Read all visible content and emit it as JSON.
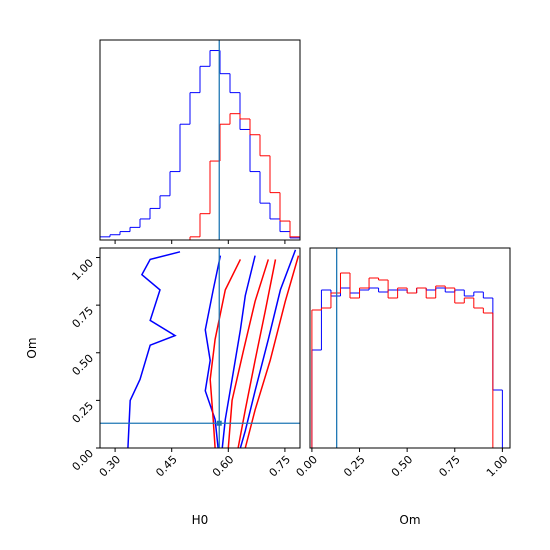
{
  "chart_data": [
    {
      "type": "histogram",
      "truth_color": "#1f77b4",
      "truth": 0.576,
      "xticklabels": false,
      "xlim": [
        0.26,
        0.79
      ],
      "ylim": [
        0,
        190
      ],
      "xticks": [
        0.3,
        0.45,
        0.6,
        0.75
      ],
      "bins": [
        0.26,
        0.2865,
        0.313,
        0.3395,
        0.366,
        0.3925,
        0.419,
        0.4455,
        0.472,
        0.4985,
        0.525,
        0.5515,
        0.578,
        0.6045,
        0.631,
        0.6575,
        0.684,
        0.7105,
        0.737,
        0.7635,
        0.79
      ],
      "series": [
        {
          "color": "blue",
          "values": [
            3,
            5,
            8,
            12,
            20,
            30,
            42,
            65,
            110,
            140,
            165,
            180,
            158,
            140,
            105,
            65,
            35,
            20,
            8,
            2
          ]
        },
        {
          "color": "red",
          "values": [
            0,
            0,
            0,
            0,
            0,
            0,
            0,
            0,
            0,
            3,
            25,
            75,
            110,
            120,
            115,
            100,
            80,
            45,
            18,
            3
          ]
        }
      ]
    },
    {
      "type": "contour",
      "xlabel": "H0",
      "ylabel": "Om",
      "truth_color": "#1f77b4",
      "truth": {
        "x": 0.576,
        "y": 0.13
      },
      "xlim": [
        0.26,
        0.79
      ],
      "ylim": [
        0,
        1.05
      ],
      "xticks": [
        {
          "value": 0.3,
          "label": "0.30"
        },
        {
          "value": 0.45,
          "label": "0.45"
        },
        {
          "value": 0.6,
          "label": "0.60"
        },
        {
          "value": 0.75,
          "label": "0.75"
        }
      ],
      "yticks": [
        {
          "value": 0,
          "label": "0.00"
        },
        {
          "value": 0.25,
          "label": "0.25"
        },
        {
          "value": 0.5,
          "label": "0.50"
        },
        {
          "value": 0.75,
          "label": "0.75"
        },
        {
          "value": 1,
          "label": "1.00"
        }
      ],
      "contours": [
        {
          "color": "blue",
          "x": [
            0.472,
            0.393,
            0.371,
            0.419,
            0.393,
            0.459,
            0.393,
            0.366,
            0.34,
            0.334
          ],
          "y": [
            1.03,
            0.99,
            0.91,
            0.83,
            0.67,
            0.59,
            0.54,
            0.36,
            0.25,
            0
          ]
        },
        {
          "color": "blue",
          "x": [
            0.579,
            0.56,
            0.539,
            0.552,
            0.539,
            0.565,
            0.573
          ],
          "y": [
            1.01,
            0.83,
            0.62,
            0.46,
            0.3,
            0.15,
            0
          ]
        },
        {
          "color": "blue",
          "x": [
            0.671,
            0.645,
            0.632,
            0.61,
            0.592,
            0.584
          ],
          "y": [
            1.01,
            0.8,
            0.62,
            0.36,
            0.15,
            0
          ]
        },
        {
          "color": "blue",
          "x": [
            0.778,
            0.738,
            0.706,
            0.671,
            0.645,
            0.632
          ],
          "y": [
            1.04,
            0.83,
            0.57,
            0.3,
            0.09,
            0
          ]
        },
        {
          "color": "red",
          "x": [
            0.632,
            0.592,
            0.565,
            0.552,
            0.56,
            0.565
          ],
          "y": [
            0.99,
            0.83,
            0.57,
            0.36,
            0.15,
            0
          ]
        },
        {
          "color": "red",
          "x": [
            0.706,
            0.671,
            0.64,
            0.61,
            0.6
          ],
          "y": [
            0.99,
            0.77,
            0.51,
            0.25,
            0
          ]
        },
        {
          "color": "red",
          "x": [
            0.725,
            0.698,
            0.671,
            0.645,
            0.626
          ],
          "y": [
            0.99,
            0.72,
            0.46,
            0.2,
            0
          ]
        },
        {
          "color": "red",
          "x": [
            0.786,
            0.751,
            0.711,
            0.671,
            0.645
          ],
          "y": [
            1.01,
            0.77,
            0.46,
            0.2,
            0
          ]
        }
      ]
    },
    {
      "type": "histogram",
      "xlabel": "Om",
      "truth_color": "#1f77b4",
      "truth": 0.13,
      "xlim": [
        -0.01,
        1.04
      ],
      "ylim": [
        0,
        200
      ],
      "xticks": [
        {
          "value": 0,
          "label": "0.00"
        },
        {
          "value": 0.25,
          "label": "0.25"
        },
        {
          "value": 0.5,
          "label": "0.50"
        },
        {
          "value": 0.75,
          "label": "0.75"
        },
        {
          "value": 1,
          "label": "1.00"
        }
      ],
      "bins": [
        0,
        0.05,
        0.1,
        0.15,
        0.2,
        0.25,
        0.3,
        0.35,
        0.4,
        0.45,
        0.5,
        0.55,
        0.6,
        0.65,
        0.7,
        0.75,
        0.8,
        0.85,
        0.9,
        0.95,
        1
      ],
      "series": [
        {
          "color": "blue",
          "values": [
            98,
            158,
            152,
            160,
            155,
            158,
            160,
            156,
            158,
            158,
            155,
            160,
            158,
            160,
            156,
            158,
            152,
            156,
            150,
            58
          ]
        },
        {
          "color": "red",
          "values": [
            138,
            140,
            155,
            175,
            150,
            160,
            170,
            168,
            150,
            160,
            155,
            160,
            150,
            162,
            160,
            145,
            150,
            140,
            135,
            0
          ]
        }
      ]
    }
  ]
}
